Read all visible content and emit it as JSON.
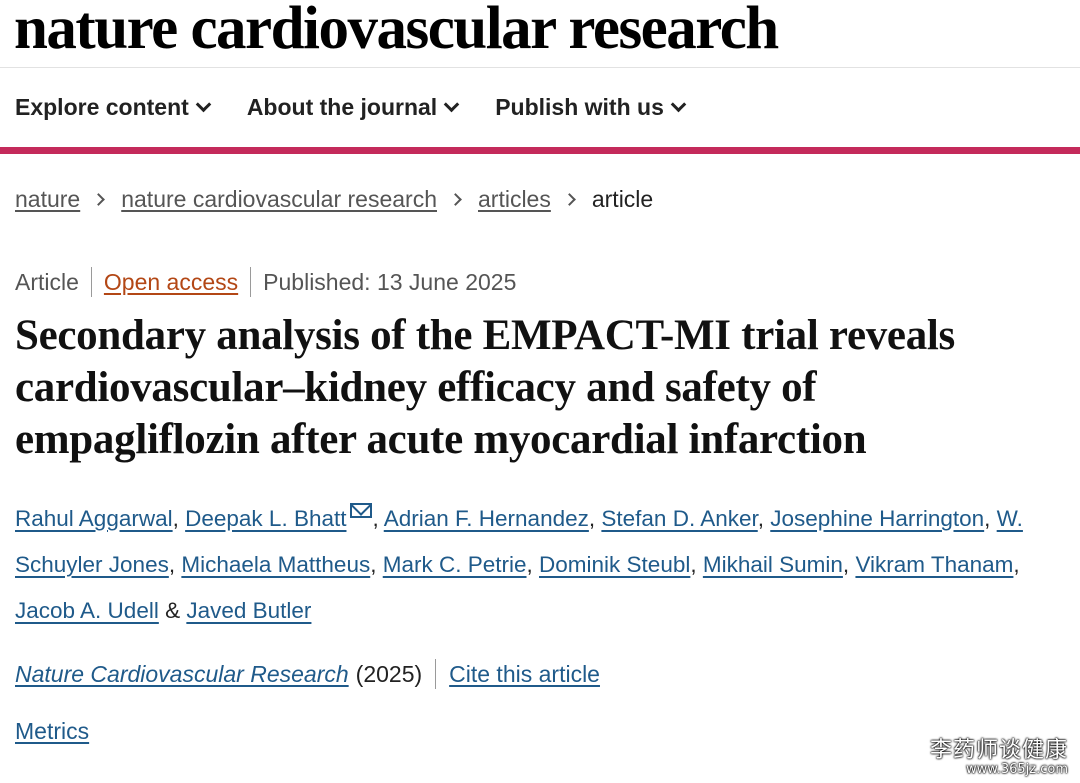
{
  "masthead": {
    "title": "nature cardiovascular research"
  },
  "nav": {
    "items": [
      {
        "label": "Explore content"
      },
      {
        "label": "About the journal"
      },
      {
        "label": "Publish with us"
      }
    ]
  },
  "colors": {
    "accent_bar": "#c42a5b",
    "link": "#1f5a8a",
    "open_access": "#b34715"
  },
  "breadcrumb": {
    "items": [
      {
        "label": "nature"
      },
      {
        "label": "nature cardiovascular research"
      },
      {
        "label": "articles"
      }
    ],
    "current": "article"
  },
  "article": {
    "type": "Article",
    "access": "Open access",
    "published": "Published: 13 June 2025",
    "title": "Secondary analysis of the EMPACT-MI trial reveals cardiovascular–kidney efficacy and safety of empagliflozin after acute myocardial infarction",
    "authors": [
      "Rahul Aggarwal",
      "Deepak L. Bhatt",
      "Adrian F. Hernandez",
      "Stefan D. Anker",
      "Josephine Harrington",
      "W. Schuyler Jones",
      "Michaela Mattheus",
      "Mark C. Petrie",
      "Dominik Steubl",
      "Mikhail Sumin",
      "Vikram Thanam",
      "Jacob A. Udell",
      "Javed Butler"
    ],
    "author_separator": ", ",
    "author_conjunction": " & ",
    "journal": "Nature Cardiovascular Research",
    "year": "(2025)",
    "cite_label": "Cite this article",
    "metrics_label": "Metrics"
  },
  "watermark": {
    "text": "李药师谈健康",
    "url": "www.365jz.com"
  }
}
